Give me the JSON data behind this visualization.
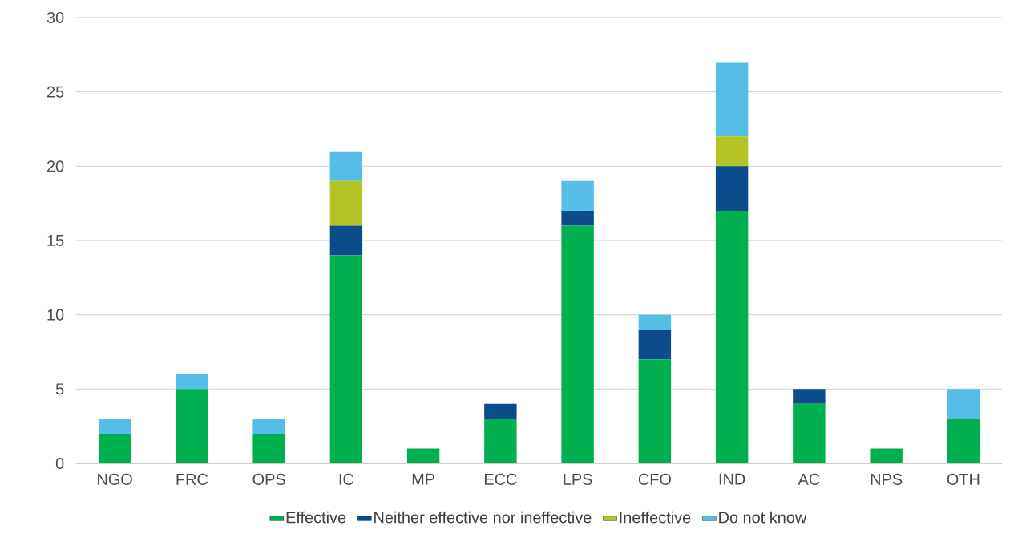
{
  "chart_data": {
    "type": "bar",
    "stacked": true,
    "categories": [
      "NGO",
      "FRC",
      "OPS",
      "IC",
      "MP",
      "ECC",
      "LPS",
      "CFO",
      "IND",
      "AC",
      "NPS",
      "OTH"
    ],
    "series": [
      {
        "name": "Effective",
        "color": "#00b050",
        "values": [
          2,
          5,
          2,
          14,
          1,
          3,
          16,
          7,
          17,
          4,
          1,
          3
        ]
      },
      {
        "name": "Neither effective nor ineffective",
        "color": "#0b4c8c",
        "values": [
          0,
          0,
          0,
          2,
          0,
          1,
          1,
          2,
          3,
          1,
          0,
          0
        ]
      },
      {
        "name": "Ineffective",
        "color": "#b4c424",
        "values": [
          0,
          0,
          0,
          3,
          0,
          0,
          0,
          0,
          2,
          0,
          0,
          0
        ]
      },
      {
        "name": "Do not know",
        "color": "#56bde8",
        "values": [
          1,
          1,
          1,
          2,
          0,
          0,
          2,
          1,
          5,
          0,
          0,
          2
        ]
      }
    ],
    "ylim": [
      0,
      30
    ],
    "yticks": [
      0,
      5,
      10,
      15,
      20,
      25,
      30
    ],
    "grid": "y",
    "legend": "bottom"
  }
}
